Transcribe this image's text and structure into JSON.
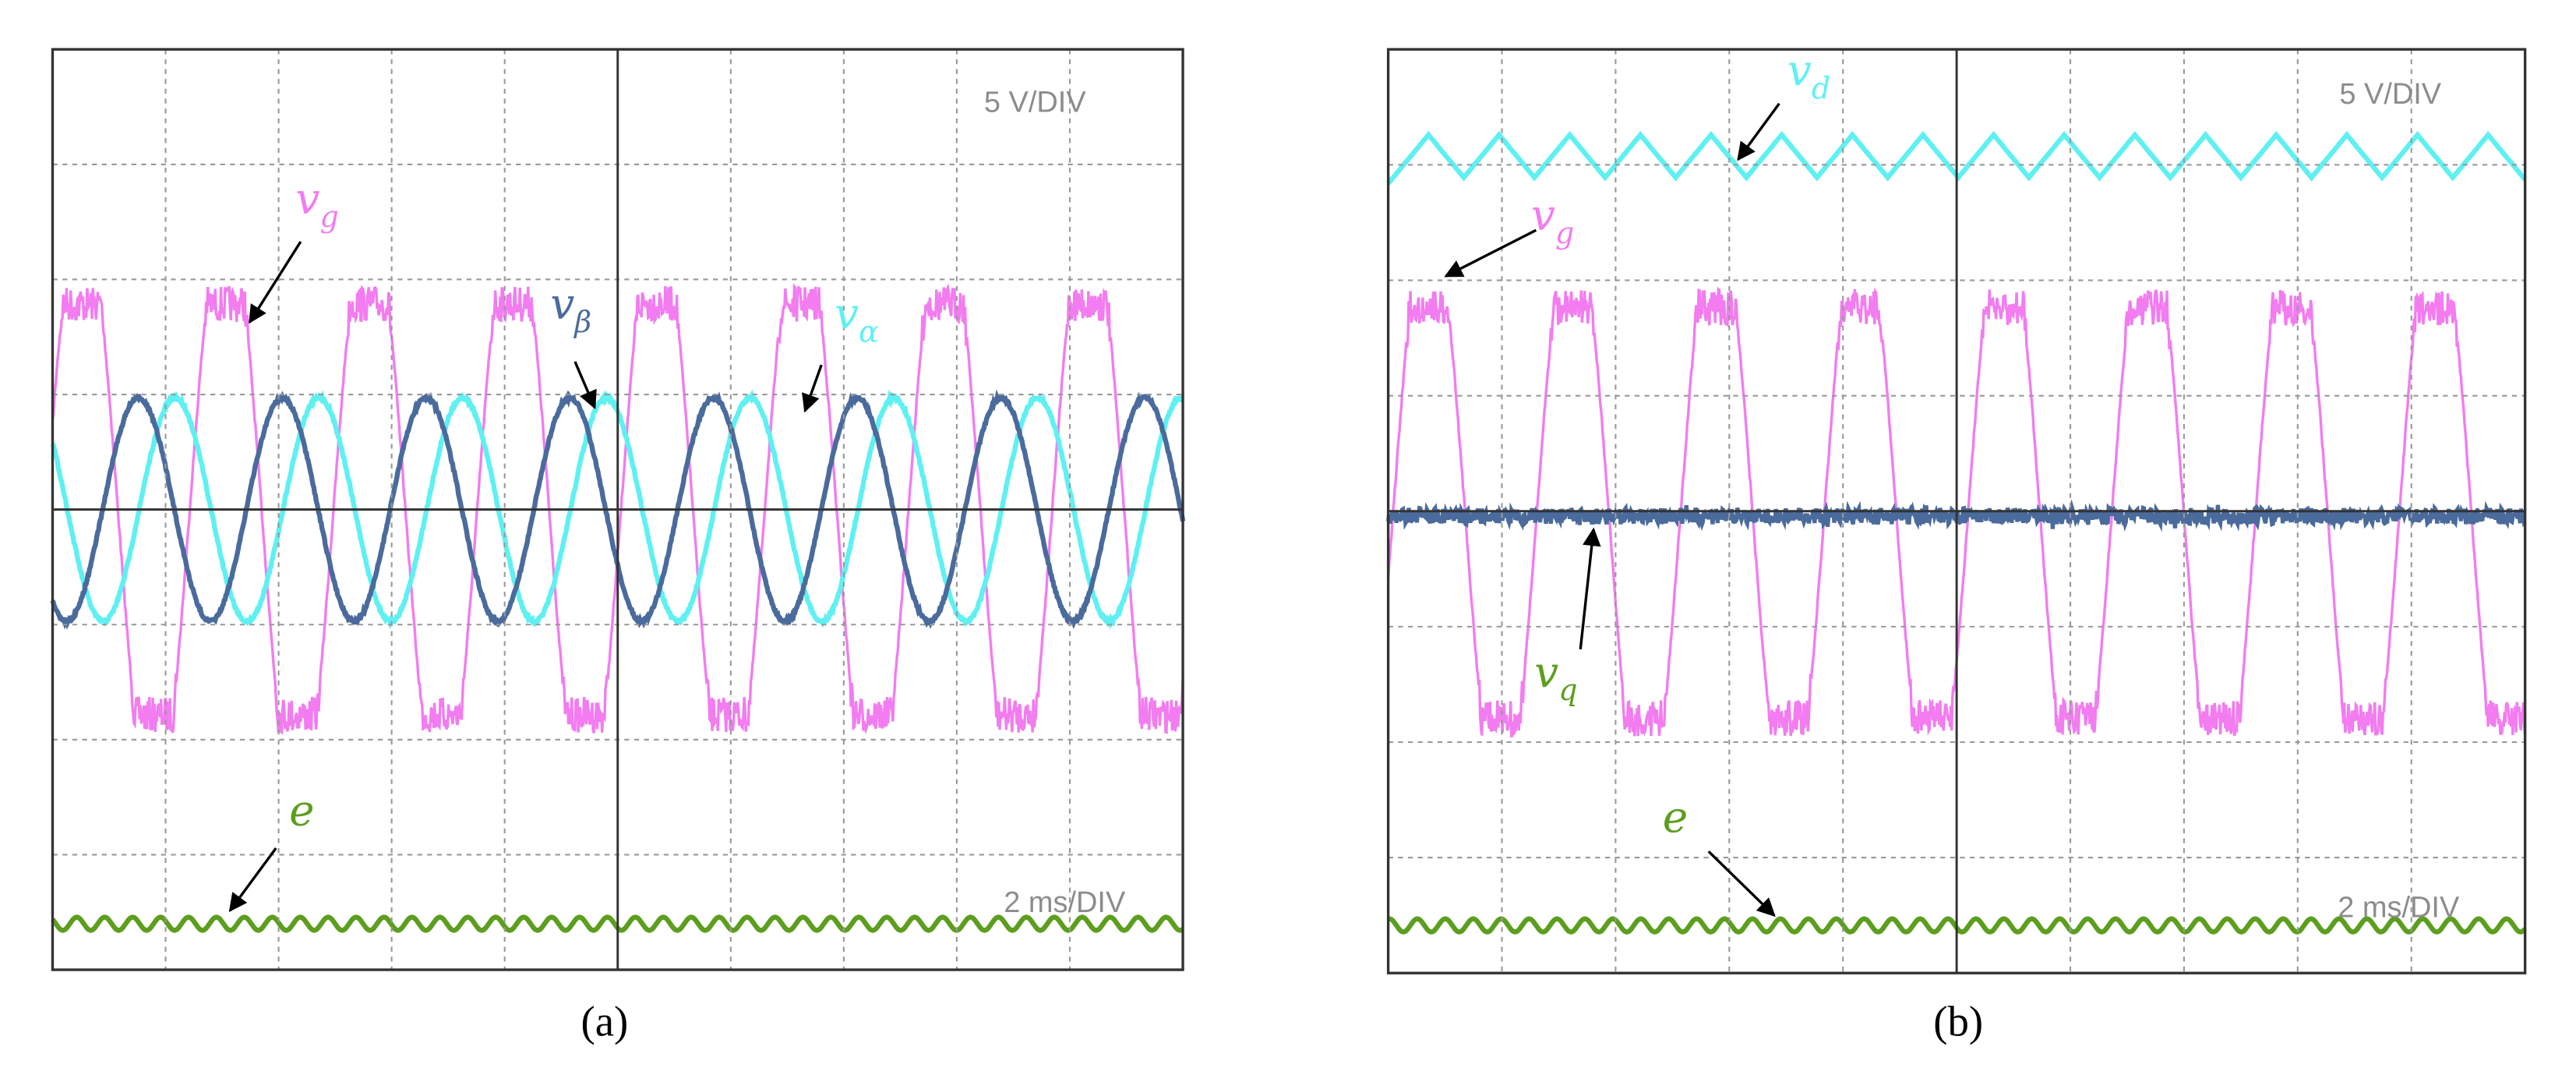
{
  "panels": [
    {
      "caption": "(a)",
      "volt_scale": "5 V/DIV",
      "time_scale": "2 ms/DIV",
      "signals": [
        {
          "main": "v",
          "sub": "g",
          "color": "#f27cf0"
        },
        {
          "main": "v",
          "sub": "β",
          "color": "#4a6b9c"
        },
        {
          "main": "v",
          "sub": "α",
          "color": "#5ff0f2"
        },
        {
          "main": "e",
          "color": "#5c9e1e"
        }
      ]
    },
    {
      "caption": "(b)",
      "volt_scale": "5 V/DIV",
      "time_scale": "2 ms/DIV",
      "signals": [
        {
          "main": "v",
          "sub": "d",
          "color": "#5ff0f2"
        },
        {
          "main": "v",
          "sub": "g",
          "color": "#f27cf0"
        },
        {
          "main": "v",
          "sub": "q",
          "color": "#5c9e1e"
        },
        {
          "main": "e",
          "color": "#5c9e1e"
        }
      ]
    }
  ]
}
